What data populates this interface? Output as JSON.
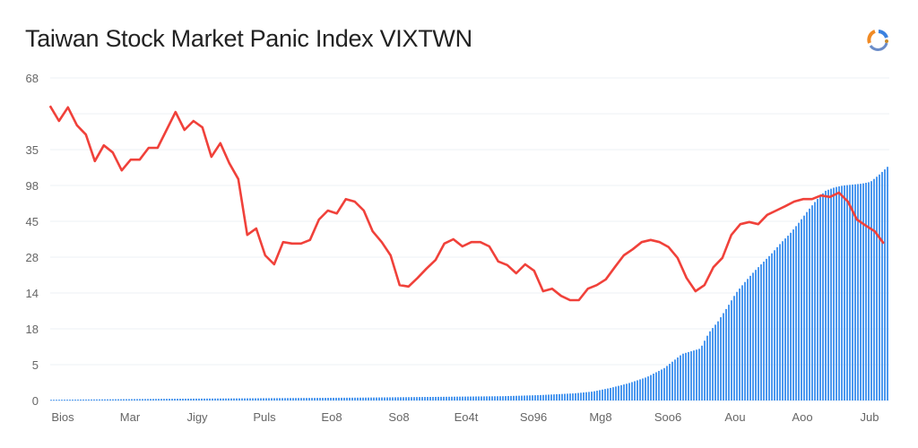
{
  "chart_data": {
    "type": "line",
    "title": "Taiwan Stock Market Panic Index VIXTWN",
    "xlabel": "",
    "ylabel": "",
    "x_tick_labels": [
      "Bios",
      "Mar",
      "Jigy",
      "Puls",
      "Eo8",
      "So8",
      "Eo4t",
      "So96",
      "Mg8",
      "Soo6",
      "Aou",
      "Aoo",
      "Jub"
    ],
    "y_tick_labels": [
      "0",
      "5",
      "18",
      "14",
      "28",
      "45",
      "98",
      "35",
      "",
      "68"
    ],
    "ylim": [
      0,
      9
    ],
    "xlim": [
      -0.19,
      12.29
    ],
    "grid": true,
    "colors": {
      "line": "#f0413a",
      "bars": "#4c98ef"
    },
    "series": [
      {
        "type": "line",
        "x_range": [
          -0.19,
          12.21
        ],
        "values": [
          8.22,
          7.8,
          8.18,
          7.68,
          7.42,
          6.68,
          7.12,
          6.92,
          6.42,
          6.72,
          6.72,
          7.05,
          7.05,
          7.55,
          8.05,
          7.55,
          7.8,
          7.62,
          6.8,
          7.18,
          6.62,
          6.18,
          4.62,
          4.8,
          4.05,
          3.8,
          4.42,
          4.38,
          4.38,
          4.48,
          5.05,
          5.3,
          5.22,
          5.62,
          5.55,
          5.3,
          4.72,
          4.42,
          4.05,
          3.22,
          3.18,
          3.42,
          3.68,
          3.92,
          4.38,
          4.5,
          4.3,
          4.42,
          4.42,
          4.3,
          3.88,
          3.78,
          3.55,
          3.8,
          3.62,
          3.05,
          3.12,
          2.92,
          2.8,
          2.8,
          3.12,
          3.22,
          3.38,
          3.72,
          4.05,
          4.22,
          4.42,
          4.48,
          4.42,
          4.28,
          3.98,
          3.42,
          3.05,
          3.22,
          3.72,
          3.98,
          4.62,
          4.92,
          4.98,
          4.92,
          5.18,
          5.3,
          5.42,
          5.55,
          5.62,
          5.62,
          5.72,
          5.68,
          5.8,
          5.55,
          5.05,
          4.88,
          4.72,
          4.38
        ]
      },
      {
        "type": "bar",
        "points": [
          [
            -0.19,
            0.02
          ],
          [
            1.73,
            0.05
          ],
          [
            4.4,
            0.08
          ],
          [
            6.53,
            0.12
          ],
          [
            7.07,
            0.15
          ],
          [
            7.6,
            0.2
          ],
          [
            7.87,
            0.25
          ],
          [
            8.13,
            0.35
          ],
          [
            8.4,
            0.48
          ],
          [
            8.67,
            0.65
          ],
          [
            8.93,
            0.9
          ],
          [
            9.2,
            1.3
          ],
          [
            9.47,
            1.45
          ],
          [
            9.6,
            1.9
          ],
          [
            9.73,
            2.2
          ],
          [
            9.87,
            2.6
          ],
          [
            10.0,
            3.0
          ],
          [
            10.13,
            3.3
          ],
          [
            10.27,
            3.6
          ],
          [
            10.4,
            3.85
          ],
          [
            10.53,
            4.1
          ],
          [
            10.67,
            4.4
          ],
          [
            10.8,
            4.65
          ],
          [
            10.93,
            4.95
          ],
          [
            11.07,
            5.3
          ],
          [
            11.2,
            5.6
          ],
          [
            11.33,
            5.85
          ],
          [
            11.47,
            5.95
          ],
          [
            11.6,
            6.0
          ],
          [
            11.87,
            6.05
          ],
          [
            12.0,
            6.1
          ],
          [
            12.13,
            6.3
          ],
          [
            12.27,
            6.55
          ]
        ]
      }
    ]
  }
}
